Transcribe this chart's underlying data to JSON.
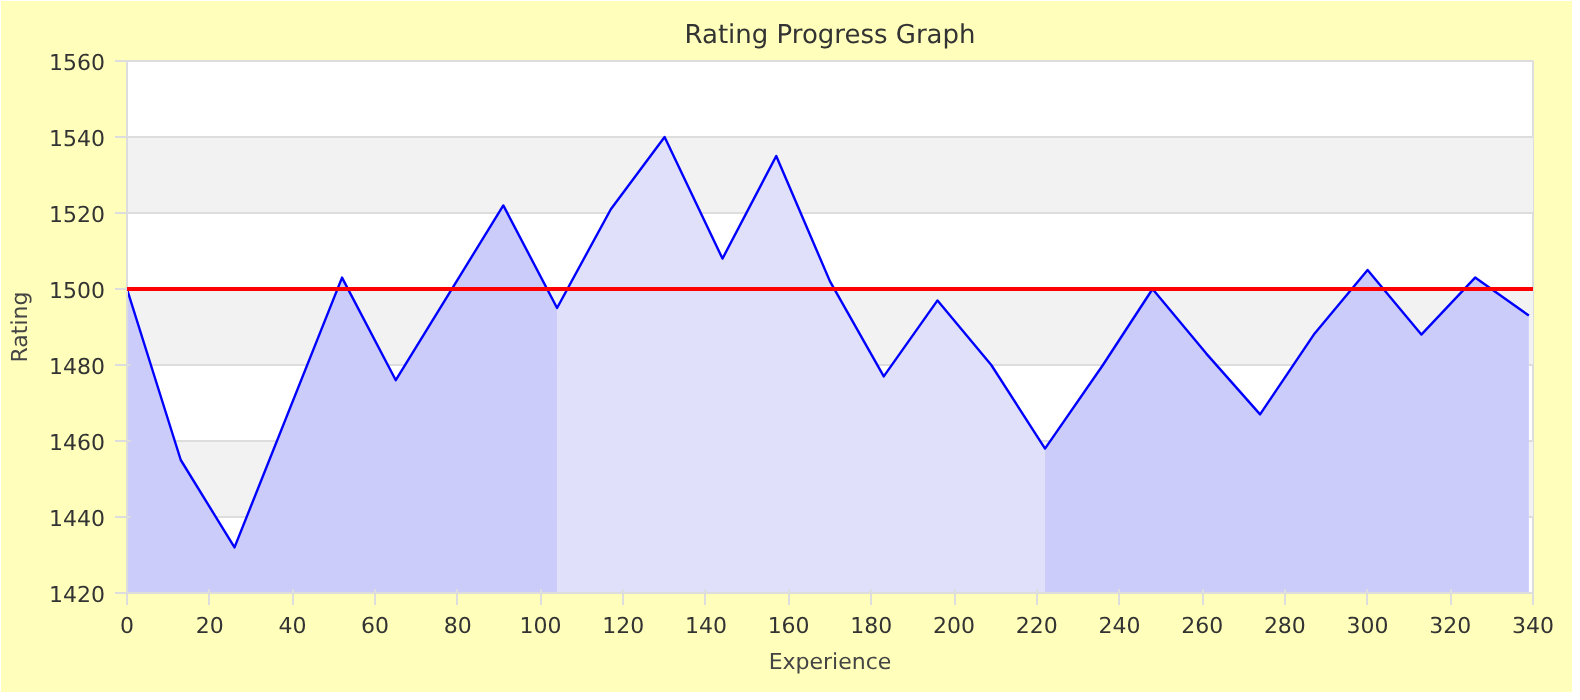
{
  "chart_data": {
    "type": "area",
    "title": "Rating Progress Graph",
    "xlabel": "Experience",
    "ylabel": "Rating",
    "series": [
      {
        "color": "#ccccfa",
        "x": [
          0,
          13,
          26,
          52,
          65,
          91,
          104
        ],
        "values": [
          1500,
          1455,
          1432,
          1503,
          1476,
          1522,
          1495
        ]
      },
      {
        "color": "#e0e0fa",
        "x": [
          104,
          117,
          130,
          144,
          157,
          170,
          183,
          196,
          209,
          222
        ],
        "values": [
          1495,
          1521,
          1540,
          1508,
          1535,
          1502,
          1477,
          1497,
          1480,
          1458
        ]
      },
      {
        "color": "#ccccfa",
        "x": [
          222,
          236,
          248,
          261,
          274,
          287,
          300,
          313,
          326,
          339
        ],
        "values": [
          1458,
          1480,
          1500,
          1483,
          1467,
          1488,
          1505,
          1488,
          1503,
          1493
        ]
      },
      {
        "type": "line",
        "color": "#0000ff",
        "x": [
          0,
          13,
          26,
          52,
          65,
          91,
          104,
          117,
          130,
          144,
          157,
          170,
          183,
          196,
          209,
          222,
          236,
          248,
          261,
          274,
          287,
          300,
          313,
          326,
          339
        ],
        "values": [
          1500,
          1455,
          1432,
          1503,
          1476,
          1522,
          1495,
          1521,
          1540,
          1508,
          1535,
          1502,
          1477,
          1497,
          1480,
          1458,
          1480,
          1500,
          1483,
          1467,
          1488,
          1505,
          1488,
          1503,
          1493
        ]
      }
    ],
    "xlim": [
      0,
      340
    ],
    "xticks": [
      0,
      20,
      40,
      60,
      80,
      100,
      120,
      140,
      160,
      180,
      200,
      220,
      240,
      260,
      280,
      300,
      320,
      340
    ],
    "ylim": [
      1420,
      1560
    ],
    "yticks": [
      1420,
      1440,
      1460,
      1480,
      1500,
      1520,
      1540,
      1560
    ],
    "ref_lines": [
      {
        "axis": "y",
        "value": 1500,
        "color": "#ff0000"
      }
    ],
    "grid": "y",
    "marker": "none",
    "line_style": "solid"
  }
}
